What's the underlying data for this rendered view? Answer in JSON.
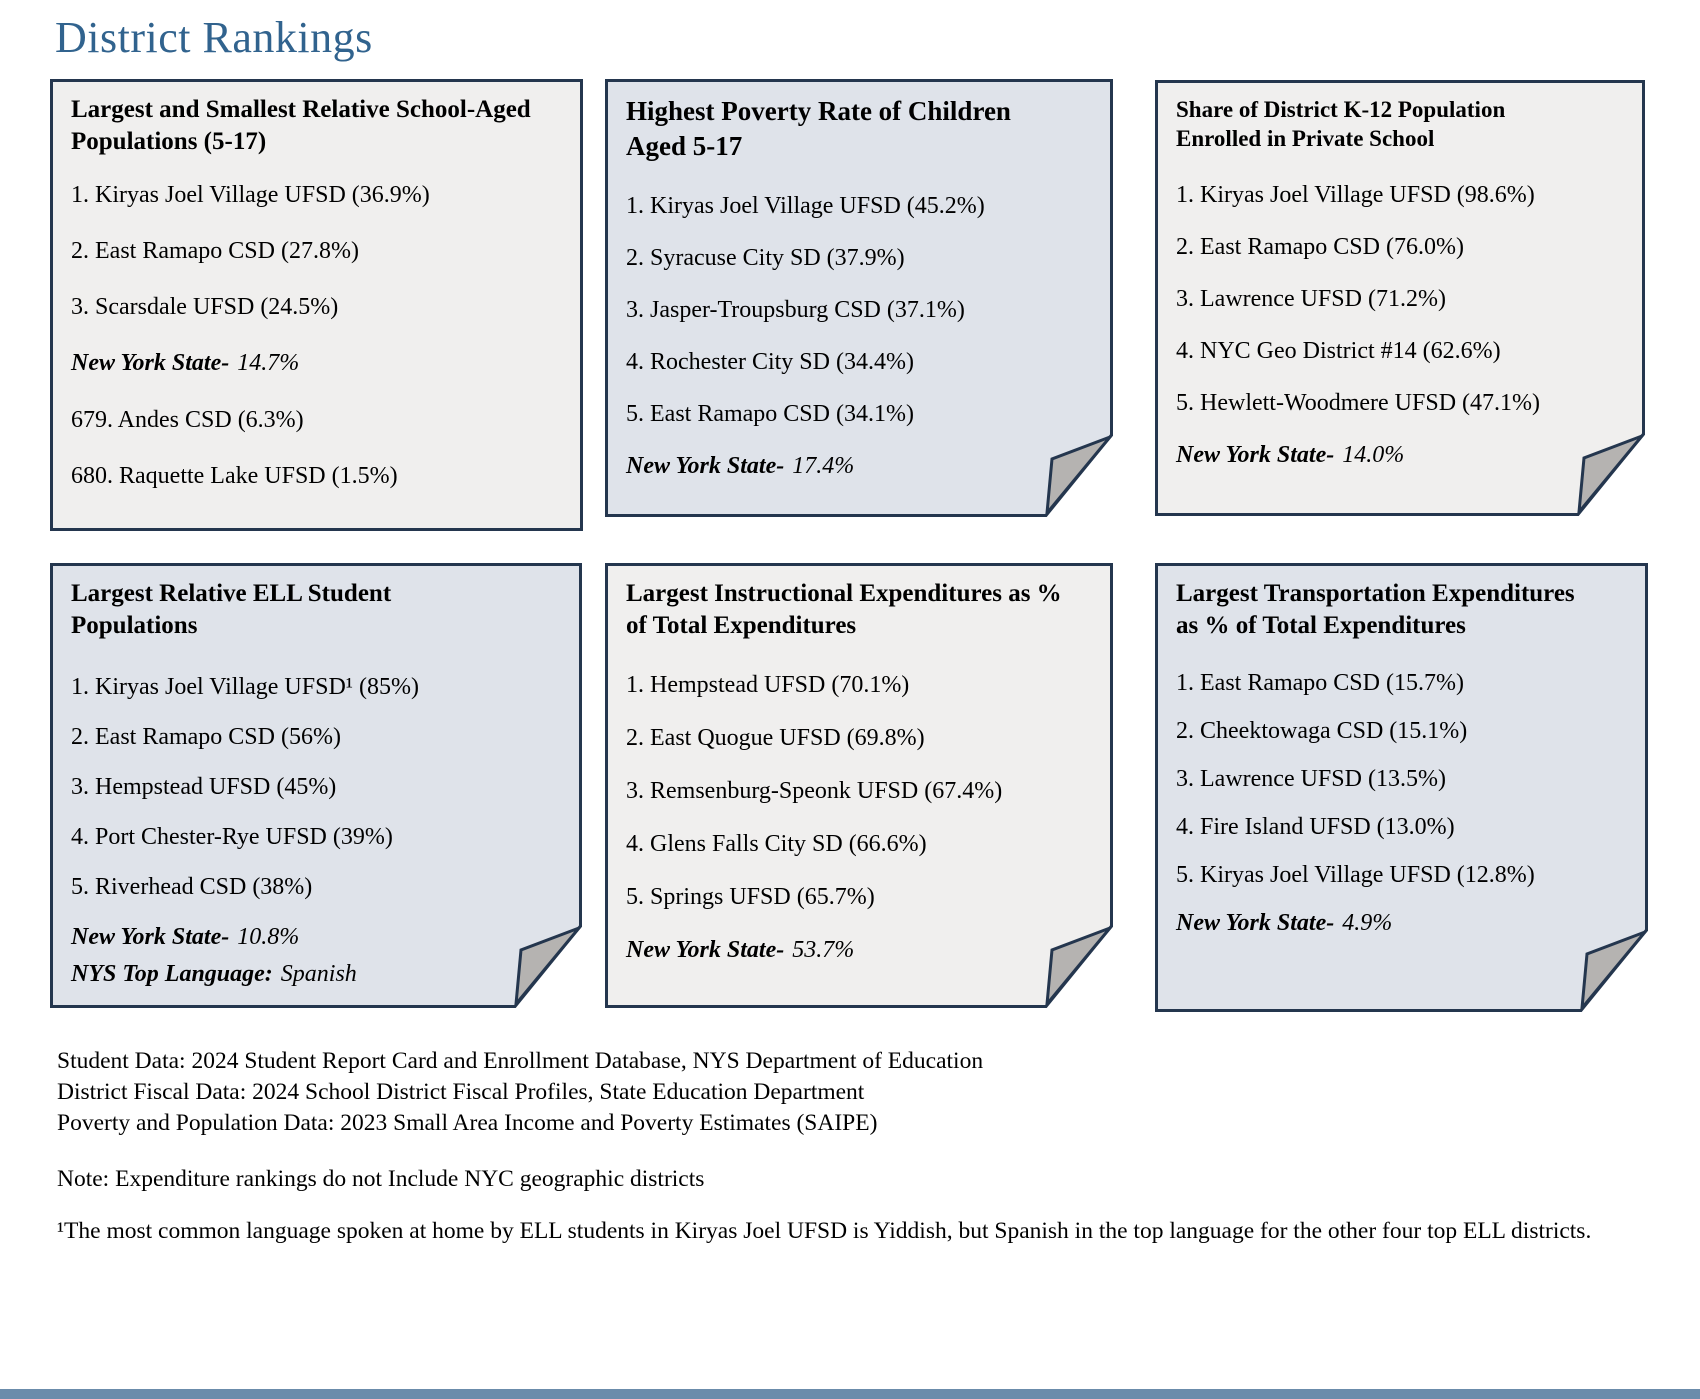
{
  "page_title": "District Rankings",
  "colors": {
    "card_border": "#24364e",
    "title": "#31638e",
    "card_gray": "#f0efee",
    "card_blue": "#dfe3ea",
    "fold": "#b5b3b1",
    "bottom_bar": "#6b8cab"
  },
  "cards": [
    {
      "id": "school-aged-population",
      "title": "Largest and Smallest Relative School-Aged Populations (5-17)",
      "lines": [
        {
          "kind": "item",
          "text": "1. Kiryas Joel Village UFSD (36.9%)"
        },
        {
          "kind": "item",
          "text": "2. East Ramapo CSD (27.8%)"
        },
        {
          "kind": "item",
          "text": "3. Scarsdale UFSD (24.5%)"
        },
        {
          "kind": "state",
          "label": "New York State-",
          "value": "14.7%"
        },
        {
          "kind": "item",
          "text": "679. Andes CSD (6.3%)"
        },
        {
          "kind": "item",
          "text": "680. Raquette Lake UFSD (1.5%)"
        }
      ]
    },
    {
      "id": "poverty-rate",
      "title": "Highest Poverty Rate of Children Aged 5-17",
      "lines": [
        {
          "kind": "item",
          "text": "1. Kiryas Joel Village UFSD (45.2%)"
        },
        {
          "kind": "item",
          "text": "2. Syracuse City SD (37.9%)"
        },
        {
          "kind": "item",
          "text": "3. Jasper-Troupsburg CSD (37.1%)"
        },
        {
          "kind": "item",
          "text": "4. Rochester City SD (34.4%)"
        },
        {
          "kind": "item",
          "text": "5. East Ramapo CSD (34.1%)"
        },
        {
          "kind": "state",
          "label": "New York State-",
          "value": "17.4%"
        }
      ]
    },
    {
      "id": "private-school-share",
      "title": "Share of District K-12 Population Enrolled in Private School",
      "lines": [
        {
          "kind": "item",
          "text": "1. Kiryas Joel Village UFSD (98.6%)"
        },
        {
          "kind": "item",
          "text": "2. East Ramapo CSD (76.0%)"
        },
        {
          "kind": "item",
          "text": "3. Lawrence UFSD (71.2%)"
        },
        {
          "kind": "item",
          "text": "4. NYC Geo District #14 (62.6%)"
        },
        {
          "kind": "item",
          "text": "5. Hewlett-Woodmere UFSD (47.1%)"
        },
        {
          "kind": "state",
          "label": "New York State-",
          "value": "14.0%"
        }
      ]
    },
    {
      "id": "ell-populations",
      "title": "Largest Relative ELL Student Populations",
      "lines": [
        {
          "kind": "item",
          "text": "1. Kiryas Joel Village UFSD¹ (85%)"
        },
        {
          "kind": "item",
          "text": "2. East Ramapo CSD (56%)"
        },
        {
          "kind": "item",
          "text": "3. Hempstead UFSD (45%)"
        },
        {
          "kind": "item",
          "text": "4. Port Chester-Rye UFSD (39%)"
        },
        {
          "kind": "item",
          "text": "5. Riverhead CSD (38%)"
        },
        {
          "kind": "state",
          "label": "New York State-",
          "value": "10.8%"
        },
        {
          "kind": "state",
          "label": "NYS Top Language:",
          "value": "Spanish"
        }
      ]
    },
    {
      "id": "instructional-expenditures",
      "title": "Largest Instructional Expenditures as % of Total Expenditures",
      "lines": [
        {
          "kind": "item",
          "text": "1. Hempstead UFSD (70.1%)"
        },
        {
          "kind": "item",
          "text": "2. East Quogue UFSD (69.8%)"
        },
        {
          "kind": "item",
          "text": "3. Remsenburg-Speonk UFSD (67.4%)"
        },
        {
          "kind": "item",
          "text": "4. Glens Falls City SD (66.6%)"
        },
        {
          "kind": "item",
          "text": "5. Springs UFSD (65.7%)"
        },
        {
          "kind": "state",
          "label": "New York State-",
          "value": "53.7%"
        }
      ]
    },
    {
      "id": "transportation-expenditures",
      "title": "Largest Transportation Expenditures as % of Total Expenditures",
      "lines": [
        {
          "kind": "item",
          "text": "1. East Ramapo CSD (15.7%)"
        },
        {
          "kind": "item",
          "text": "2. Cheektowaga CSD (15.1%)"
        },
        {
          "kind": "item",
          "text": "3. Lawrence UFSD (13.5%)"
        },
        {
          "kind": "item",
          "text": "4. Fire Island UFSD (13.0%)"
        },
        {
          "kind": "item",
          "text": "5. Kiryas Joel Village UFSD (12.8%)"
        },
        {
          "kind": "state",
          "label": "New York State-",
          "value": "4.9%"
        }
      ]
    }
  ],
  "footer": {
    "sources": [
      "Student Data: 2024 Student Report Card and Enrollment Database, NYS Department of Education",
      "District Fiscal Data: 2024 School District Fiscal Profiles, State Education Department",
      "Poverty and Population Data: 2023 Small Area Income and Poverty Estimates (SAIPE)"
    ],
    "note": "Note: Expenditure rankings do not Include NYC geographic districts",
    "footnote": "¹The most common language spoken at home by ELL students in Kiryas Joel UFSD is Yiddish, but Spanish in the top language for the other four top ELL districts."
  }
}
